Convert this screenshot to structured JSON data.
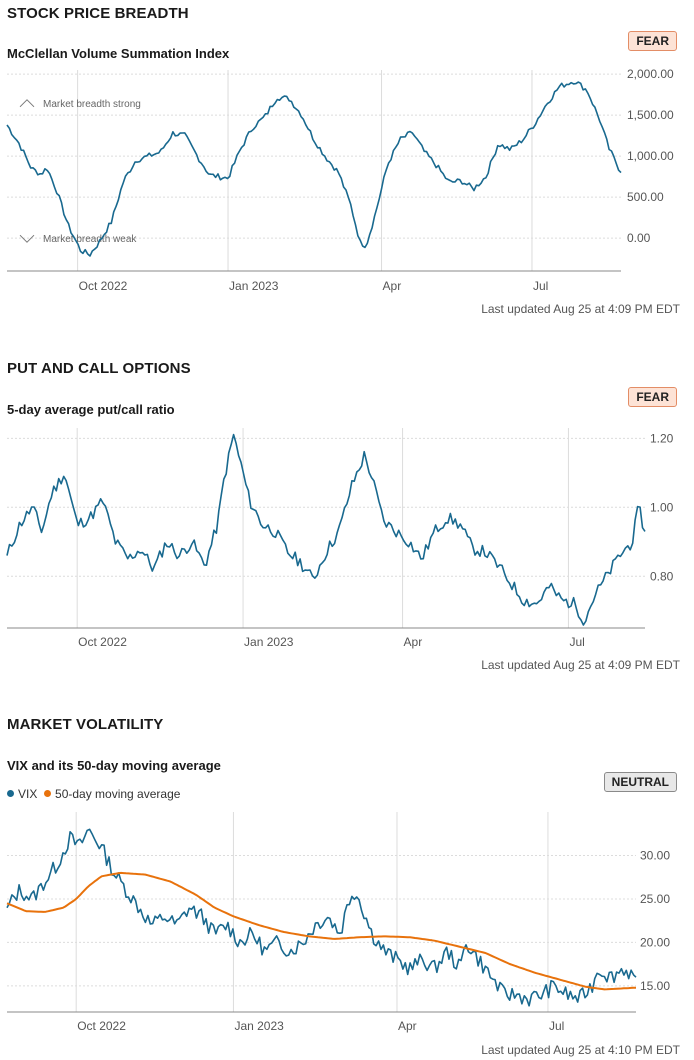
{
  "colors": {
    "accent": "#19698f",
    "ma": "#e8720c",
    "grid": "#dcdcdc",
    "fear_bg": "#fde3d6",
    "neutral_bg": "#e8e8e8"
  },
  "panels": [
    {
      "title": "STOCK PRICE BREADTH",
      "subtitle": "McClellan Volume Summation Index",
      "badge": "FEAR",
      "updated": "Last updated Aug 25 at 4:09 PM EDT"
    },
    {
      "title": "PUT AND CALL OPTIONS",
      "subtitle": "5-day average put/call ratio",
      "badge": "FEAR",
      "updated": "Last updated Aug 25 at 4:09 PM EDT"
    },
    {
      "title": "MARKET VOLATILITY",
      "subtitle": "VIX and its 50-day moving average",
      "badge": "NEUTRAL",
      "updated": "Last updated Aug 25 at 4:10 PM EDT",
      "legend": [
        "VIX",
        "50-day moving average"
      ]
    }
  ],
  "chart_data": [
    {
      "type": "line",
      "title": "McClellan Volume Summation Index",
      "xlabel": "",
      "ylabel": "",
      "ylim": [
        -400,
        2050
      ],
      "yticks": [
        0,
        500,
        1000,
        1500,
        2000
      ],
      "ytick_labels": [
        "0.00",
        "500.00",
        "1,000.00",
        "1,500.00",
        "2,000.00"
      ],
      "xticks": [
        "Oct 2022",
        "Jan 2023",
        "Apr",
        "Jul"
      ],
      "xtick_pos": [
        0.115,
        0.36,
        0.61,
        0.855
      ],
      "annotations": [
        "Market breadth strong",
        "Market breadth weak"
      ],
      "series": [
        {
          "name": "McClellan Volume Summation Index",
          "keyframes": [
            [
              0,
              1380
            ],
            [
              0.02,
              1150
            ],
            [
              0.04,
              850
            ],
            [
              0.055,
              780
            ],
            [
              0.065,
              860
            ],
            [
              0.08,
              600
            ],
            [
              0.1,
              150
            ],
            [
              0.12,
              -150
            ],
            [
              0.135,
              -200
            ],
            [
              0.15,
              -50
            ],
            [
              0.17,
              200
            ],
            [
              0.19,
              700
            ],
            [
              0.21,
              950
            ],
            [
              0.23,
              1000
            ],
            [
              0.25,
              1050
            ],
            [
              0.27,
              1280
            ],
            [
              0.29,
              1250
            ],
            [
              0.31,
              1000
            ],
            [
              0.33,
              770
            ],
            [
              0.36,
              730
            ],
            [
              0.38,
              1080
            ],
            [
              0.4,
              1350
            ],
            [
              0.42,
              1480
            ],
            [
              0.44,
              1720
            ],
            [
              0.46,
              1700
            ],
            [
              0.48,
              1500
            ],
            [
              0.5,
              1200
            ],
            [
              0.52,
              980
            ],
            [
              0.54,
              800
            ],
            [
              0.56,
              400
            ],
            [
              0.575,
              -50
            ],
            [
              0.585,
              -90
            ],
            [
              0.6,
              300
            ],
            [
              0.62,
              900
            ],
            [
              0.64,
              1200
            ],
            [
              0.66,
              1290
            ],
            [
              0.68,
              1050
            ],
            [
              0.7,
              880
            ],
            [
              0.72,
              680
            ],
            [
              0.74,
              700
            ],
            [
              0.76,
              600
            ],
            [
              0.78,
              750
            ],
            [
              0.8,
              1150
            ],
            [
              0.82,
              1080
            ],
            [
              0.84,
              1200
            ],
            [
              0.86,
              1400
            ],
            [
              0.88,
              1650
            ],
            [
              0.9,
              1850
            ],
            [
              0.925,
              1920
            ],
            [
              0.945,
              1800
            ],
            [
              0.965,
              1450
            ],
            [
              0.98,
              1100
            ],
            [
              1,
              800
            ]
          ]
        }
      ]
    },
    {
      "type": "line",
      "title": "5-day average put/call ratio",
      "xlabel": "",
      "ylabel": "",
      "ylim": [
        0.65,
        1.23
      ],
      "yticks": [
        0.8,
        1.0,
        1.2
      ],
      "ytick_labels": [
        "0.80",
        "1.00",
        "1.20"
      ],
      "xticks": [
        "Oct 2022",
        "Jan 2023",
        "Apr",
        "Jul"
      ],
      "xtick_pos": [
        0.11,
        0.37,
        0.62,
        0.88
      ],
      "series": [
        {
          "name": "put/call ratio",
          "keyframes": [
            [
              0,
              0.86
            ],
            [
              0.02,
              0.95
            ],
            [
              0.04,
              1.0
            ],
            [
              0.055,
              0.93
            ],
            [
              0.07,
              1.04
            ],
            [
              0.09,
              1.1
            ],
            [
              0.11,
              0.95
            ],
            [
              0.13,
              0.97
            ],
            [
              0.15,
              1.02
            ],
            [
              0.17,
              0.9
            ],
            [
              0.19,
              0.85
            ],
            [
              0.21,
              0.88
            ],
            [
              0.23,
              0.82
            ],
            [
              0.25,
              0.9
            ],
            [
              0.27,
              0.86
            ],
            [
              0.29,
              0.9
            ],
            [
              0.31,
              0.83
            ],
            [
              0.33,
              0.95
            ],
            [
              0.34,
              1.08
            ],
            [
              0.355,
              1.21
            ],
            [
              0.37,
              1.1
            ],
            [
              0.38,
              1.02
            ],
            [
              0.4,
              0.95
            ],
            [
              0.42,
              0.93
            ],
            [
              0.44,
              0.87
            ],
            [
              0.46,
              0.84
            ],
            [
              0.48,
              0.79
            ],
            [
              0.5,
              0.87
            ],
            [
              0.52,
              0.93
            ],
            [
              0.54,
              1.06
            ],
            [
              0.56,
              1.15
            ],
            [
              0.57,
              1.1
            ],
            [
              0.59,
              0.96
            ],
            [
              0.61,
              0.93
            ],
            [
              0.63,
              0.9
            ],
            [
              0.65,
              0.85
            ],
            [
              0.67,
              0.93
            ],
            [
              0.69,
              0.97
            ],
            [
              0.71,
              0.95
            ],
            [
              0.73,
              0.88
            ],
            [
              0.75,
              0.87
            ],
            [
              0.77,
              0.83
            ],
            [
              0.79,
              0.78
            ],
            [
              0.81,
              0.73
            ],
            [
              0.83,
              0.72
            ],
            [
              0.85,
              0.77
            ],
            [
              0.87,
              0.73
            ],
            [
              0.89,
              0.72
            ],
            [
              0.905,
              0.67
            ],
            [
              0.92,
              0.74
            ],
            [
              0.94,
              0.8
            ],
            [
              0.96,
              0.86
            ],
            [
              0.98,
              0.9
            ],
            [
              0.99,
              1.0
            ],
            [
              1,
              0.93
            ]
          ]
        }
      ]
    },
    {
      "type": "line",
      "title": "VIX and its 50-day moving average",
      "xlabel": "",
      "ylabel": "",
      "ylim": [
        12,
        35
      ],
      "yticks": [
        15,
        20,
        25,
        30
      ],
      "ytick_labels": [
        "15.00",
        "20.00",
        "25.00",
        "30.00"
      ],
      "xticks": [
        "Oct 2022",
        "Jan 2023",
        "Apr",
        "Jul"
      ],
      "xtick_pos": [
        0.11,
        0.36,
        0.62,
        0.86
      ],
      "series": [
        {
          "name": "VIX",
          "keyframes": [
            [
              0,
              24
            ],
            [
              0.02,
              26
            ],
            [
              0.04,
              25
            ],
            [
              0.06,
              27
            ],
            [
              0.08,
              29
            ],
            [
              0.1,
              32
            ],
            [
              0.115,
              31
            ],
            [
              0.13,
              33
            ],
            [
              0.15,
              31
            ],
            [
              0.17,
              28
            ],
            [
              0.19,
              26
            ],
            [
              0.21,
              24
            ],
            [
              0.23,
              22
            ],
            [
              0.25,
              23
            ],
            [
              0.27,
              22
            ],
            [
              0.29,
              24
            ],
            [
              0.31,
              23
            ],
            [
              0.33,
              21
            ],
            [
              0.35,
              22
            ],
            [
              0.37,
              20
            ],
            [
              0.39,
              21
            ],
            [
              0.41,
              19
            ],
            [
              0.43,
              20
            ],
            [
              0.45,
              19
            ],
            [
              0.47,
              20
            ],
            [
              0.49,
              22
            ],
            [
              0.51,
              23
            ],
            [
              0.53,
              21
            ],
            [
              0.54,
              24
            ],
            [
              0.55,
              26
            ],
            [
              0.56,
              25
            ],
            [
              0.58,
              21
            ],
            [
              0.6,
              19
            ],
            [
              0.62,
              18
            ],
            [
              0.64,
              17
            ],
            [
              0.66,
              18
            ],
            [
              0.68,
              17
            ],
            [
              0.7,
              19
            ],
            [
              0.71,
              18
            ],
            [
              0.72,
              17
            ],
            [
              0.73,
              20
            ],
            [
              0.75,
              18
            ],
            [
              0.77,
              16
            ],
            [
              0.79,
              14
            ],
            [
              0.81,
              14
            ],
            [
              0.83,
              13.5
            ],
            [
              0.85,
              14
            ],
            [
              0.87,
              15
            ],
            [
              0.89,
              14
            ],
            [
              0.91,
              13.5
            ],
            [
              0.93,
              15
            ],
            [
              0.94,
              17
            ],
            [
              0.96,
              16
            ],
            [
              0.98,
              17
            ],
            [
              1,
              16
            ]
          ]
        },
        {
          "name": "50-day moving average",
          "keyframes": [
            [
              0,
              24.5
            ],
            [
              0.03,
              23.6
            ],
            [
              0.06,
              23.5
            ],
            [
              0.09,
              24
            ],
            [
              0.11,
              25
            ],
            [
              0.13,
              26.5
            ],
            [
              0.15,
              27.6
            ],
            [
              0.18,
              28
            ],
            [
              0.22,
              27.8
            ],
            [
              0.26,
              27
            ],
            [
              0.3,
              25.5
            ],
            [
              0.33,
              24
            ],
            [
              0.36,
              23
            ],
            [
              0.4,
              22
            ],
            [
              0.44,
              21.2
            ],
            [
              0.48,
              20.7
            ],
            [
              0.52,
              20.4
            ],
            [
              0.56,
              20.6
            ],
            [
              0.6,
              20.7
            ],
            [
              0.64,
              20.6
            ],
            [
              0.68,
              20.2
            ],
            [
              0.72,
              19.5
            ],
            [
              0.76,
              18.8
            ],
            [
              0.8,
              17.5
            ],
            [
              0.84,
              16.5
            ],
            [
              0.88,
              15.7
            ],
            [
              0.92,
              14.9
            ],
            [
              0.95,
              14.6
            ],
            [
              1,
              14.8
            ]
          ]
        }
      ]
    }
  ]
}
